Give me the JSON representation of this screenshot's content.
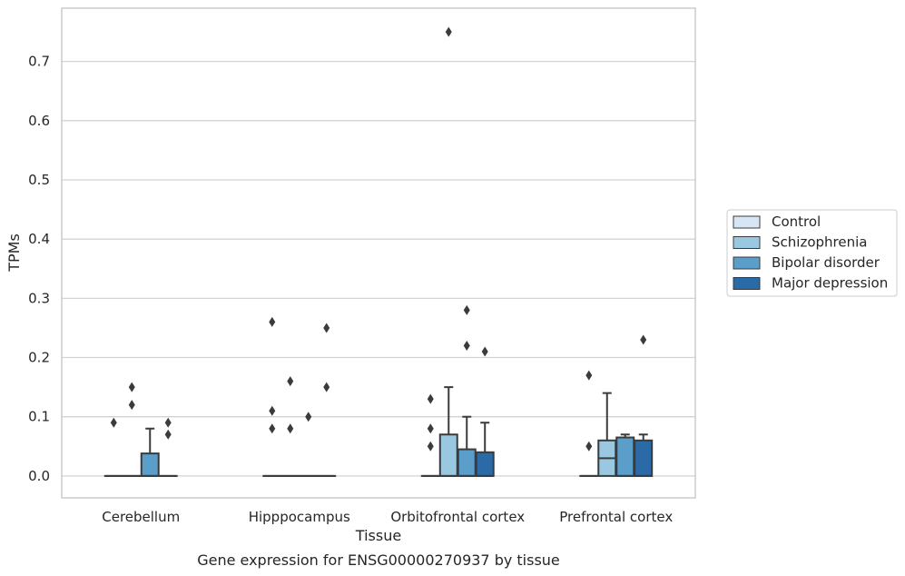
{
  "caption": "Gene expression for ENSG00000270937 by tissue",
  "chart_data": {
    "type": "box",
    "xlabel": "Tissue",
    "ylabel": "TPMs",
    "ylim": [
      -0.037,
      0.79
    ],
    "yticks": [
      0.0,
      0.1,
      0.2,
      0.3,
      0.4,
      0.5,
      0.6,
      0.7
    ],
    "ytick_labels": [
      "0.0",
      "0.1",
      "0.2",
      "0.3",
      "0.4",
      "0.5",
      "0.6",
      "0.7"
    ],
    "grid": "horizontal",
    "legend_position": "right",
    "categories": [
      "Cerebellum",
      "Hipppocampus",
      "Orbitofrontal cortex",
      "Prefrontal cortex"
    ],
    "series": [
      {
        "name": "Control",
        "color": "#d6e6f4",
        "boxes": [
          {
            "q1": 0,
            "median": 0,
            "q3": 0,
            "whislo": 0,
            "whishi": 0,
            "fliers": [
              0.09
            ]
          },
          {
            "q1": 0,
            "median": 0,
            "q3": 0,
            "whislo": 0,
            "whishi": 0,
            "fliers": [
              0.08,
              0.11,
              0.26
            ]
          },
          {
            "q1": 0,
            "median": 0,
            "q3": 0,
            "whislo": 0,
            "whishi": 0,
            "fliers": [
              0.05,
              0.08,
              0.13
            ]
          },
          {
            "q1": 0,
            "median": 0,
            "q3": 0,
            "whislo": 0,
            "whishi": 0,
            "fliers": [
              0.05,
              0.17
            ]
          }
        ]
      },
      {
        "name": "Schizophrenia",
        "color": "#9ac8e0",
        "boxes": [
          {
            "q1": 0,
            "median": 0,
            "q3": 0,
            "whislo": 0,
            "whishi": 0,
            "fliers": [
              0.12,
              0.15
            ]
          },
          {
            "q1": 0,
            "median": 0,
            "q3": 0,
            "whislo": 0,
            "whishi": 0,
            "fliers": [
              0.08,
              0.16
            ]
          },
          {
            "q1": 0,
            "median": 0,
            "q3": 0.07,
            "whislo": 0,
            "whishi": 0.15,
            "fliers": [
              0.75
            ]
          },
          {
            "q1": 0,
            "median": 0.03,
            "q3": 0.06,
            "whislo": 0,
            "whishi": 0.14,
            "fliers": []
          }
        ]
      },
      {
        "name": "Bipolar disorder",
        "color": "#5a9ec9",
        "boxes": [
          {
            "q1": 0,
            "median": 0,
            "q3": 0.038,
            "whislo": 0,
            "whishi": 0.08,
            "fliers": []
          },
          {
            "q1": 0,
            "median": 0,
            "q3": 0,
            "whislo": 0,
            "whishi": 0,
            "fliers": [
              0.1
            ]
          },
          {
            "q1": 0,
            "median": 0,
            "q3": 0.045,
            "whislo": 0,
            "whishi": 0.1,
            "fliers": [
              0.22,
              0.28
            ]
          },
          {
            "q1": 0,
            "median": 0,
            "q3": 0.065,
            "whislo": 0,
            "whishi": 0.07,
            "fliers": []
          }
        ]
      },
      {
        "name": "Major depression",
        "color": "#2a6aa7",
        "boxes": [
          {
            "q1": 0,
            "median": 0,
            "q3": 0,
            "whislo": 0,
            "whishi": 0,
            "fliers": [
              0.07,
              0.09
            ]
          },
          {
            "q1": 0,
            "median": 0,
            "q3": 0,
            "whislo": 0,
            "whishi": 0,
            "fliers": [
              0.15,
              0.25
            ]
          },
          {
            "q1": 0,
            "median": 0,
            "q3": 0.04,
            "whislo": 0,
            "whishi": 0.09,
            "fliers": [
              0.21
            ]
          },
          {
            "q1": 0,
            "median": 0,
            "q3": 0.06,
            "whislo": 0,
            "whishi": 0.07,
            "fliers": [
              0.23
            ]
          }
        ]
      }
    ]
  }
}
